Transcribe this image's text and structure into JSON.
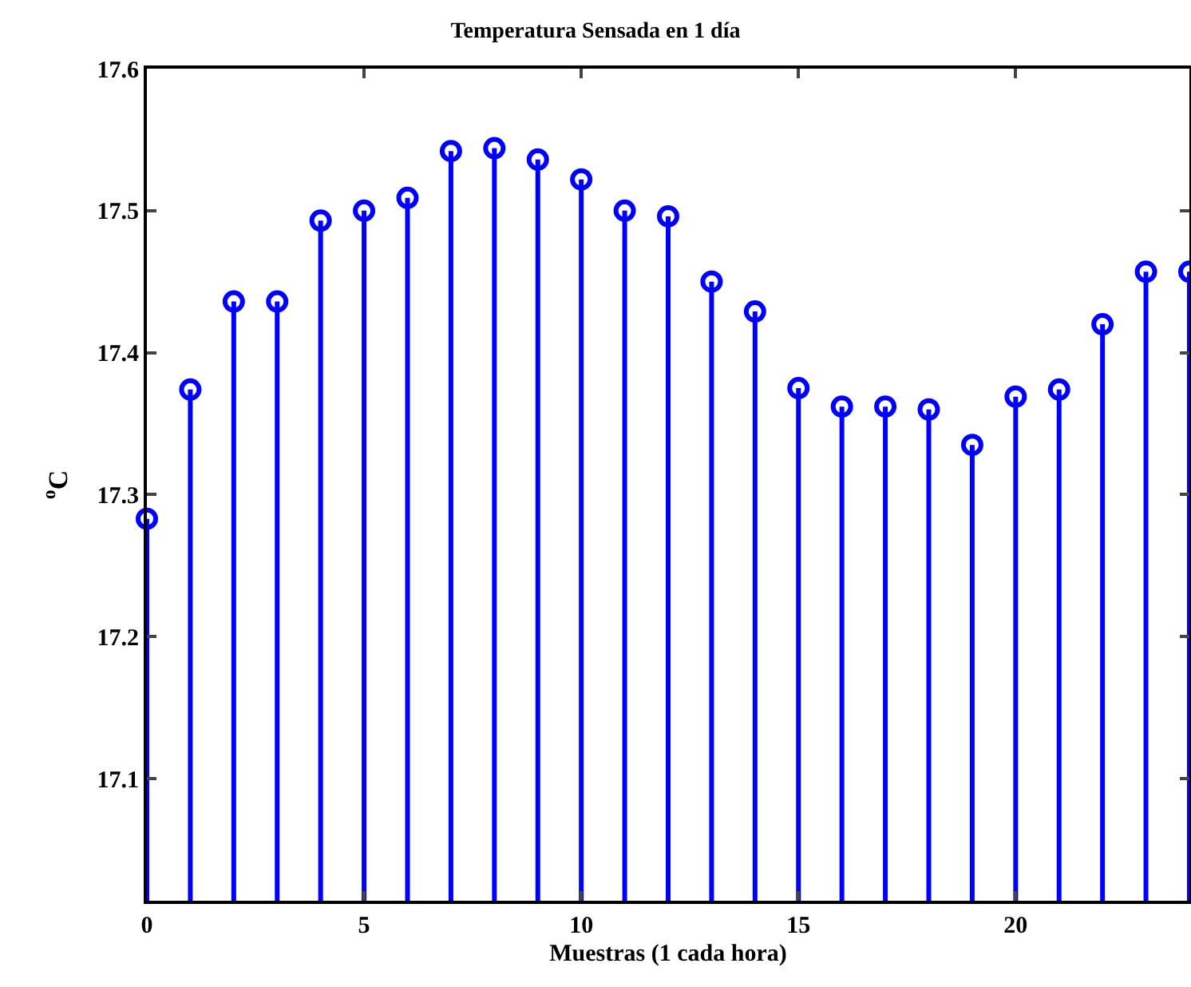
{
  "chart_data": {
    "type": "lollipop",
    "title": "Temperatura Sensada en 1 día",
    "xlabel": "Muestras (1 cada hora)",
    "ylabel": "$^{o}$C",
    "x": [
      0,
      1,
      2,
      3,
      4,
      5,
      6,
      7,
      8,
      9,
      10,
      11,
      12,
      13,
      14,
      15,
      16,
      17,
      18,
      19,
      20,
      21,
      22,
      23,
      24
    ],
    "values": [
      17.283,
      17.374,
      17.436,
      17.436,
      17.493,
      17.5,
      17.509,
      17.542,
      17.544,
      17.536,
      17.522,
      17.5,
      17.496,
      17.45,
      17.429,
      17.375,
      17.362,
      17.362,
      17.36,
      17.335,
      17.369,
      17.374,
      17.42,
      17.457,
      17.457
    ],
    "color": "#0000ff",
    "marker": "circle",
    "xlim": [
      0,
      24
    ],
    "xticks": [
      0,
      5,
      10,
      15,
      20
    ],
    "ylim": [
      17.014,
      17.6
    ],
    "yticks": [
      17.1,
      17.2,
      17.3,
      17.4,
      17.5,
      17.6
    ]
  }
}
